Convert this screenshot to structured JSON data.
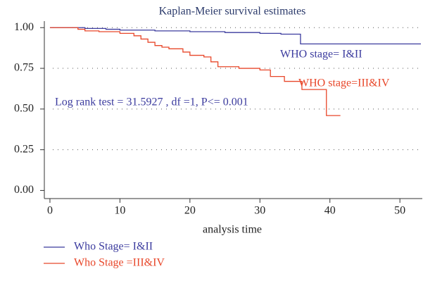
{
  "chart_data": {
    "type": "step",
    "title": "Kaplan-Meier survival estimates",
    "x_label": "analysis time",
    "xlim": [
      -0.8,
      53.2
    ],
    "xticks": [
      0,
      10,
      20,
      30,
      40,
      50
    ],
    "ylim": [
      -0.05,
      1.04
    ],
    "yticks": [
      {
        "value": 0,
        "label": "0.00"
      },
      {
        "value": 0.25,
        "label": "0.25"
      },
      {
        "value": 0.5,
        "label": "0.50"
      },
      {
        "value": 0.75,
        "label": "0.75"
      },
      {
        "value": 1,
        "label": "1.00"
      }
    ],
    "grid": true,
    "series": [
      {
        "name": "Who Stage= I&II",
        "color": "#3b3b9e",
        "x": [
          0,
          5,
          8,
          10,
          15,
          20,
          25,
          30,
          33,
          35.8,
          53
        ],
        "values": [
          1,
          0.995,
          0.99,
          0.985,
          0.98,
          0.975,
          0.97,
          0.965,
          0.96,
          0.9,
          0.9
        ]
      },
      {
        "name": "Who Stage =III&IV",
        "color": "#e8472a",
        "x": [
          0,
          4,
          5,
          7,
          10,
          12,
          13,
          14,
          15,
          16,
          17,
          19,
          20,
          22,
          23,
          24,
          27,
          30,
          31.5,
          33.5,
          36,
          39.5,
          41.5
        ],
        "values": [
          1,
          0.99,
          0.98,
          0.975,
          0.965,
          0.95,
          0.93,
          0.91,
          0.89,
          0.88,
          0.87,
          0.85,
          0.83,
          0.82,
          0.79,
          0.76,
          0.75,
          0.74,
          0.7,
          0.67,
          0.62,
          0.46,
          0.46
        ]
      }
    ],
    "annotations": [
      {
        "text": "WHO stage= I&II",
        "color": "#3b3b9e"
      },
      {
        "text": "WHO stage=III&IV",
        "color": "#e8472a"
      },
      {
        "text": "Log rank test = 31.5927 , df =1, P<= 0.001",
        "color": "#3b3b9e"
      }
    ]
  }
}
